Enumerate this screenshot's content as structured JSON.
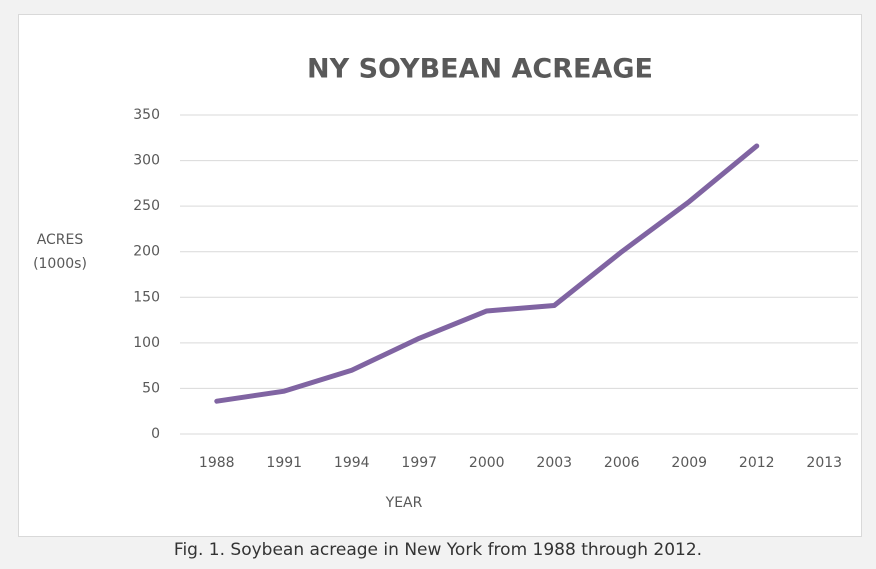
{
  "chart_data": {
    "type": "line",
    "title": "NY SOYBEAN ACREAGE",
    "y_label": "ACRES (1000s)",
    "x_label": "YEAR",
    "categories": [
      "1988",
      "1991",
      "1994",
      "1997",
      "2000",
      "2003",
      "2006",
      "2009",
      "2012",
      "2013"
    ],
    "series": [
      {
        "name": "Soybean acreage",
        "color": "#8064a2",
        "values": [
          36,
          47,
          70,
          105,
          135,
          141,
          200,
          255,
          316,
          null
        ]
      }
    ],
    "ylim": [
      0,
      350
    ],
    "yticks": [
      0,
      50,
      100,
      150,
      200,
      250,
      300,
      350
    ],
    "grid": true
  },
  "caption": "Fig. 1. Soybean acreage in New York from 1988 through 2012."
}
